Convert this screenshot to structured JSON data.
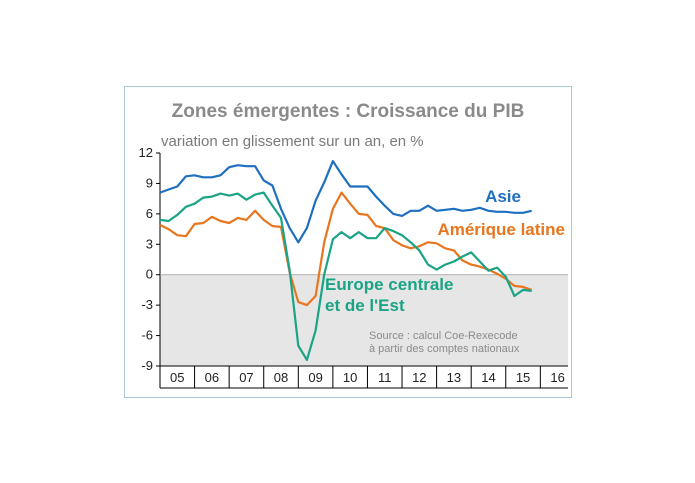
{
  "chart_data": {
    "type": "line",
    "title": "Zones émergentes : Croissance du PIB",
    "subtitle": "variation en glissement sur un an, en %",
    "ylim": [
      -9,
      12
    ],
    "yticks": [
      12,
      9,
      6,
      3,
      0,
      -3,
      -6,
      -9
    ],
    "xlim": [
      2005,
      2016.8
    ],
    "xtick_labels": [
      "05",
      "06",
      "07",
      "08",
      "09",
      "10",
      "11",
      "12",
      "13",
      "14",
      "15",
      "16"
    ],
    "negative_region_shaded": true,
    "source": [
      "Source : calcul Coe-Rexecode",
      "à partir des comptes nationaux"
    ],
    "series": [
      {
        "name": "Asie",
        "label": "Asie",
        "color": "#1f6fc0",
        "x": [
          2005.0,
          2005.25,
          2005.5,
          2005.75,
          2006.0,
          2006.25,
          2006.5,
          2006.75,
          2007.0,
          2007.25,
          2007.5,
          2007.75,
          2008.0,
          2008.25,
          2008.5,
          2008.75,
          2009.0,
          2009.25,
          2009.5,
          2009.75,
          2010.0,
          2010.25,
          2010.5,
          2010.75,
          2011.0,
          2011.25,
          2011.5,
          2011.75,
          2012.0,
          2012.25,
          2012.5,
          2012.75,
          2013.0,
          2013.25,
          2013.5,
          2013.75,
          2014.0,
          2014.25,
          2014.5,
          2014.75,
          2015.0,
          2015.25,
          2015.5,
          2015.75
        ],
        "y": [
          8.1,
          8.4,
          8.7,
          9.7,
          9.8,
          9.6,
          9.6,
          9.8,
          10.6,
          10.8,
          10.7,
          10.7,
          9.3,
          8.8,
          6.5,
          4.6,
          3.2,
          4.6,
          7.3,
          9.1,
          11.2,
          9.9,
          8.7,
          8.7,
          8.7,
          7.7,
          6.8,
          6.0,
          5.8,
          6.3,
          6.3,
          6.8,
          6.3,
          6.4,
          6.5,
          6.3,
          6.4,
          6.6,
          6.3,
          6.2,
          6.2,
          6.1,
          6.1,
          6.3
        ]
      },
      {
        "name": "Amérique latine",
        "label": "Amérique latine",
        "color": "#e8761e",
        "x": [
          2005.0,
          2005.25,
          2005.5,
          2005.75,
          2006.0,
          2006.25,
          2006.5,
          2006.75,
          2007.0,
          2007.25,
          2007.5,
          2007.75,
          2008.0,
          2008.25,
          2008.5,
          2008.75,
          2009.0,
          2009.25,
          2009.5,
          2009.75,
          2010.0,
          2010.25,
          2010.5,
          2010.75,
          2011.0,
          2011.25,
          2011.5,
          2011.75,
          2012.0,
          2012.25,
          2012.5,
          2012.75,
          2013.0,
          2013.25,
          2013.5,
          2013.75,
          2014.0,
          2014.25,
          2014.5,
          2014.75,
          2015.0,
          2015.25,
          2015.5,
          2015.75
        ],
        "y": [
          4.9,
          4.5,
          3.9,
          3.8,
          5.0,
          5.1,
          5.7,
          5.3,
          5.1,
          5.6,
          5.4,
          6.3,
          5.4,
          4.8,
          4.7,
          0.2,
          -2.7,
          -3.0,
          -2.1,
          3.2,
          6.5,
          8.1,
          7.0,
          6.0,
          5.9,
          4.8,
          4.6,
          3.4,
          2.9,
          2.6,
          2.8,
          3.2,
          3.1,
          2.6,
          2.4,
          1.4,
          1.0,
          0.8,
          0.5,
          0.1,
          -0.4,
          -1.1,
          -1.2,
          -1.5
        ]
      },
      {
        "name": "Europe centrale et de l'Est",
        "label_lines": [
          "Europe centrale",
          "et de l'Est"
        ],
        "color": "#1aa384",
        "x": [
          2005.0,
          2005.25,
          2005.5,
          2005.75,
          2006.0,
          2006.25,
          2006.5,
          2006.75,
          2007.0,
          2007.25,
          2007.5,
          2007.75,
          2008.0,
          2008.25,
          2008.5,
          2008.75,
          2009.0,
          2009.25,
          2009.5,
          2009.75,
          2010.0,
          2010.25,
          2010.5,
          2010.75,
          2011.0,
          2011.25,
          2011.5,
          2011.75,
          2012.0,
          2012.25,
          2012.5,
          2012.75,
          2013.0,
          2013.25,
          2013.5,
          2013.75,
          2014.0,
          2014.25,
          2014.5,
          2014.75,
          2015.0,
          2015.25,
          2015.5,
          2015.75
        ],
        "y": [
          5.4,
          5.3,
          5.9,
          6.7,
          7.0,
          7.6,
          7.7,
          8.0,
          7.8,
          8.0,
          7.4,
          7.9,
          8.1,
          6.8,
          5.6,
          0.4,
          -7.0,
          -8.4,
          -5.5,
          0.0,
          3.5,
          4.2,
          3.6,
          4.2,
          3.6,
          3.6,
          4.6,
          4.3,
          3.9,
          3.2,
          2.4,
          1.0,
          0.5,
          1.0,
          1.3,
          1.8,
          2.2,
          1.3,
          0.4,
          0.7,
          -0.2,
          -2.1,
          -1.5,
          -1.6
        ]
      }
    ]
  }
}
